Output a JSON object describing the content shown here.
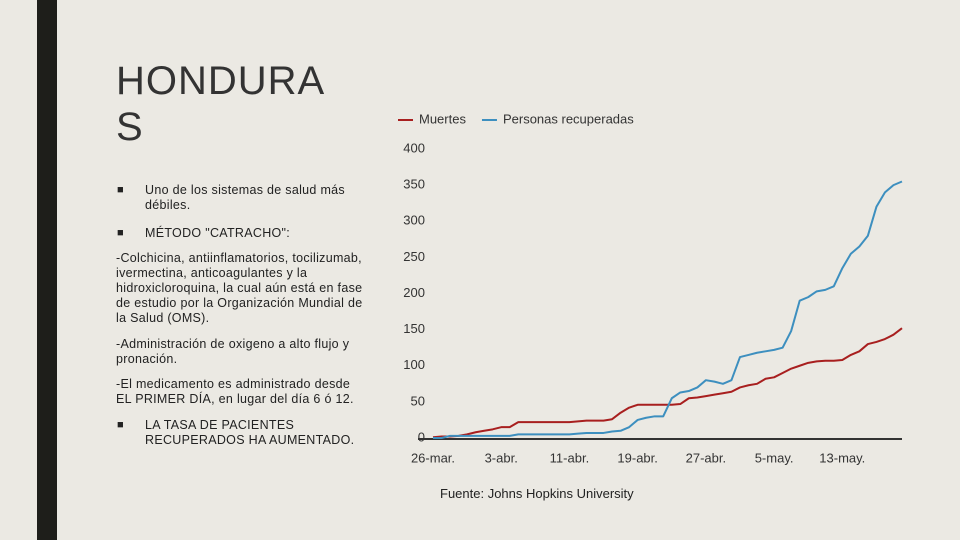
{
  "slide": {
    "title": "HONDURAS",
    "bullets_top": [
      "Uno de los sistemas de salud más débiles.",
      "MÉTODO \"CATRACHO\":"
    ],
    "paragraphs": [
      "-Colchicina, antiinflamatorios, tocilizumab, ivermectina, anticoagulantes y la hidroxicloroquina, la cual aún está en fase de estudio por la Organización Mundial de la Salud (OMS).",
      "-Administración de oxigeno a alto flujo y pronación.",
      "-El medicamento es administrado desde EL PRIMER DÍA, en lugar del día 6 ó 12."
    ],
    "bullets_bottom": [
      "LA TASA DE PACIENTES RECUPERADOS HA AUMENTADO."
    ],
    "source": "Fuente: Johns Hopkins University"
  },
  "chart_data": {
    "type": "line",
    "categories": [
      "26-mar.",
      null,
      null,
      null,
      null,
      null,
      null,
      null,
      "3-abr.",
      null,
      null,
      null,
      null,
      null,
      null,
      null,
      "11-abr.",
      null,
      null,
      null,
      null,
      null,
      null,
      null,
      "19-abr.",
      null,
      null,
      null,
      null,
      null,
      null,
      null,
      "27-abr.",
      null,
      null,
      null,
      null,
      null,
      null,
      null,
      "5-may.",
      null,
      null,
      null,
      null,
      null,
      null,
      null,
      "13-may.",
      null,
      null,
      null,
      null,
      null,
      null,
      null
    ],
    "series": [
      {
        "name": "Muertes",
        "color": "#a81f1f",
        "values": [
          1,
          2,
          2,
          3,
          5,
          8,
          10,
          12,
          15,
          15,
          22,
          22,
          22,
          22,
          22,
          22,
          22,
          23,
          24,
          24,
          24,
          26,
          35,
          42,
          46,
          46,
          46,
          46,
          46,
          47,
          55,
          56,
          58,
          60,
          62,
          64,
          70,
          73,
          75,
          82,
          84,
          90,
          96,
          100,
          104,
          106,
          107,
          107,
          108,
          115,
          120,
          130,
          133,
          137,
          143,
          152
        ]
      },
      {
        "name": "Personas recuperadas",
        "color": "#3d8fbf",
        "values": [
          0,
          0,
          3,
          3,
          3,
          3,
          3,
          3,
          3,
          3,
          5,
          5,
          5,
          5,
          5,
          5,
          5,
          6,
          7,
          7,
          7,
          9,
          10,
          15,
          25,
          28,
          30,
          30,
          55,
          63,
          65,
          70,
          80,
          78,
          75,
          80,
          112,
          115,
          118,
          120,
          122,
          125,
          148,
          190,
          195,
          203,
          205,
          210,
          235,
          255,
          265,
          280,
          320,
          340,
          350,
          355
        ]
      }
    ],
    "ylim": [
      0,
      400
    ],
    "yticks": [
      0,
      50,
      100,
      150,
      200,
      250,
      300,
      350,
      400
    ],
    "grid": false
  }
}
